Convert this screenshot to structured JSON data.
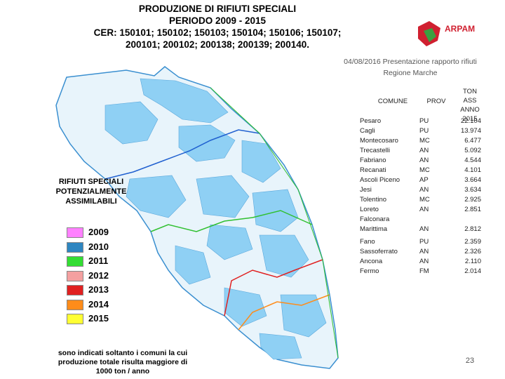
{
  "header": {
    "title_lines": [
      "PRODUZIONE DI RIFIUTI SPECIALI",
      "PERIODO 2009 - 2015",
      "CER: 150101; 150102; 150103; 150104; 150106; 150107;",
      "200101; 200102; 200138; 200139; 200140."
    ]
  },
  "logo": {
    "text": "ARPAM"
  },
  "caption": {
    "lines": [
      "04/08/2016 Presentazione rapporto rifiuti",
      "Regione Marche"
    ]
  },
  "table": {
    "headers": [
      "COMUNE",
      "PROV",
      "TON ASS ANNO 2015"
    ],
    "rows": [
      [
        "Pesaro",
        "PU",
        "22.104"
      ],
      [
        "Cagli",
        "PU",
        "13.974"
      ],
      [
        "Montecosaro",
        "MC",
        "6.477"
      ],
      [
        "Trecastelli",
        "AN",
        "5.092"
      ],
      [
        "Fabriano",
        "AN",
        "4.544"
      ],
      [
        "Recanati",
        "MC",
        "4.101"
      ],
      [
        "Ascoli Piceno",
        "AP",
        "3.664"
      ],
      [
        "Jesi",
        "AN",
        "3.634"
      ],
      [
        "Tolentino",
        "MC",
        "2.925"
      ],
      [
        "Loreto",
        "AN",
        "2.851"
      ],
      [
        "Falconara Marittima",
        "AN",
        "2.812"
      ],
      [
        "Fano",
        "PU",
        "2.359"
      ],
      [
        "Sassoferrato",
        "AN",
        "2.326"
      ],
      [
        "Ancona",
        "AN",
        "2.110"
      ],
      [
        "Fermo",
        "FM",
        "2.014"
      ]
    ]
  },
  "legend": {
    "title": "RIFIUTI SPECIALI POTENZIALMENTE ASSIMILABILI",
    "items": [
      {
        "label": "2009",
        "color": "#ff80ff"
      },
      {
        "label": "2010",
        "color": "#2e86c1"
      },
      {
        "label": "2011",
        "color": "#33dd33"
      },
      {
        "label": "2012",
        "color": "#f4a0a0"
      },
      {
        "label": "2013",
        "color": "#e02020"
      },
      {
        "label": "2014",
        "color": "#ff8c1a"
      },
      {
        "label": "2015",
        "color": "#ffff33"
      }
    ]
  },
  "footnote": "sono indicati soltanto i comuni la cui produzione totale risulta maggiore di 1000 ton / anno",
  "page_number": "23"
}
